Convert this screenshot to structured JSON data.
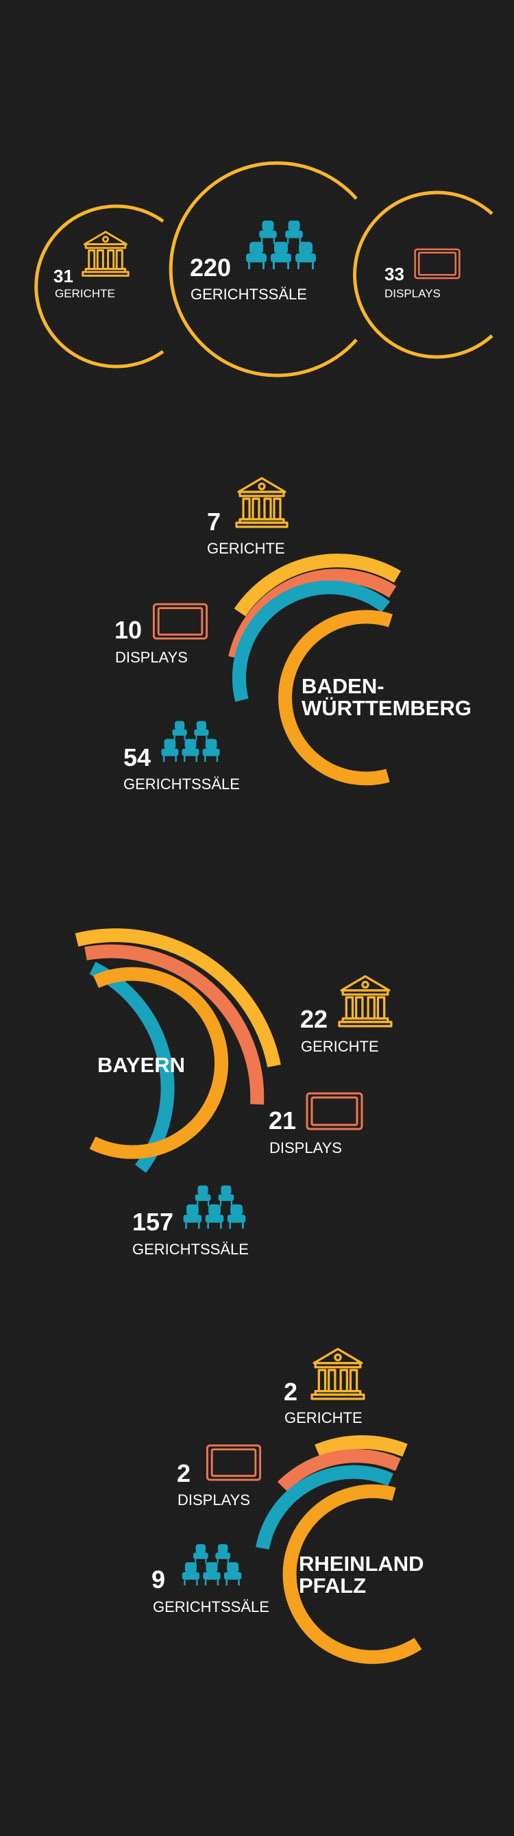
{
  "colors": {
    "background": "#1c1c1c",
    "yellow": "#f9b52c",
    "orange_ring": "#f6a21f",
    "coral": "#ef7850",
    "teal": "#1aa3bd",
    "building_icon": "#f9b52c",
    "display_icon": "#ef7850",
    "seats_icon": "#1aa3bd"
  },
  "icons": [
    "courthouse-icon",
    "display-icon",
    "seats-icon"
  ],
  "summary": {
    "gerichte": {
      "value": "31",
      "label": "GERICHTE"
    },
    "gerichtssaele": {
      "value": "220",
      "label": "GERICHTSSÄLE"
    },
    "displays": {
      "value": "33",
      "label": "DISPLAYS"
    }
  },
  "states": [
    {
      "name_lines": [
        "BADEN-",
        "WÜRTTEMBERG"
      ],
      "gerichte": {
        "value": "7",
        "label": "GERICHTE"
      },
      "displays": {
        "value": "10",
        "label": "DISPLAYS"
      },
      "gerichtssaele": {
        "value": "54",
        "label": "GERICHTSSÄLE"
      }
    },
    {
      "name_lines": [
        "BAYERN"
      ],
      "gerichte": {
        "value": "22",
        "label": "GERICHTE"
      },
      "displays": {
        "value": "21",
        "label": "DISPLAYS"
      },
      "gerichtssaele": {
        "value": "157",
        "label": "GERICHTSSÄLE"
      }
    },
    {
      "name_lines": [
        "RHEINLAND",
        "PFALZ"
      ],
      "gerichte": {
        "value": "2",
        "label": "GERICHTE"
      },
      "displays": {
        "value": "2",
        "label": "DISPLAYS"
      },
      "gerichtssaele": {
        "value": "9",
        "label": "GERICHTSSÄLE"
      }
    }
  ],
  "chart_data": {
    "type": "infographic",
    "metrics": [
      "GERICHTE",
      "DISPLAYS",
      "GERICHTSSÄLE"
    ],
    "totals": {
      "GERICHTE": 31,
      "GERICHTSSÄLE": 220,
      "DISPLAYS": 33
    },
    "series": [
      {
        "name": "BADEN-WÜRTTEMBERG",
        "values": [
          7,
          10,
          54
        ]
      },
      {
        "name": "BAYERN",
        "values": [
          22,
          21,
          157
        ]
      },
      {
        "name": "RHEINLAND PFALZ",
        "values": [
          2,
          2,
          9
        ]
      }
    ]
  }
}
